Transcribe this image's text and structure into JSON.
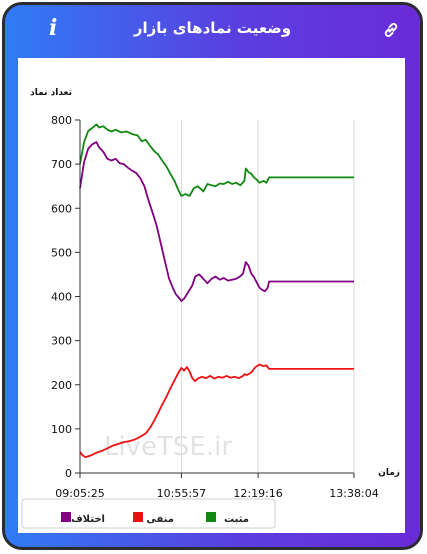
{
  "header": {
    "title": "وضعیت نمادهای بازار",
    "info_icon": "i",
    "link_icon": "link-icon"
  },
  "chart_data": {
    "type": "line",
    "ylabel": "تعداد نماد",
    "xlabel": "زمان",
    "ylim": [
      0,
      800
    ],
    "y_ticks": [
      0,
      100,
      200,
      300,
      400,
      500,
      600,
      700,
      800
    ],
    "x_tick_labels": [
      "09:05:25",
      "10:55:57",
      "12:19:16",
      "13:38:04"
    ],
    "x_tick_positions": [
      0,
      37,
      65,
      100
    ],
    "x_range": [
      0,
      100
    ],
    "watermark": "LiveTSE.ir",
    "legend": "bottom",
    "series": [
      {
        "name": "مثبت",
        "color": "#118811",
        "points": [
          [
            0,
            700
          ],
          [
            1.5,
            750
          ],
          [
            3,
            775
          ],
          [
            4.5,
            782
          ],
          [
            6,
            790
          ],
          [
            7,
            783
          ],
          [
            8.5,
            786
          ],
          [
            10,
            778
          ],
          [
            11.5,
            774
          ],
          [
            13,
            778
          ],
          [
            15,
            772
          ],
          [
            17,
            774
          ],
          [
            19,
            768
          ],
          [
            21,
            765
          ],
          [
            22.5,
            752
          ],
          [
            24,
            755
          ],
          [
            25.5,
            742
          ],
          [
            27,
            730
          ],
          [
            28.5,
            722
          ],
          [
            30,
            708
          ],
          [
            31.5,
            695
          ],
          [
            33,
            678
          ],
          [
            34.5,
            662
          ],
          [
            36,
            640
          ],
          [
            37,
            628
          ],
          [
            38.5,
            632
          ],
          [
            40,
            628
          ],
          [
            41.5,
            645
          ],
          [
            43,
            650
          ],
          [
            44,
            644
          ],
          [
            45,
            638
          ],
          [
            46.5,
            655
          ],
          [
            48,
            652
          ],
          [
            49.5,
            650
          ],
          [
            51,
            656
          ],
          [
            52.5,
            655
          ],
          [
            54,
            660
          ],
          [
            55.5,
            655
          ],
          [
            57,
            658
          ],
          [
            58.5,
            652
          ],
          [
            60,
            662
          ],
          [
            60.5,
            690
          ],
          [
            61.5,
            682
          ],
          [
            62.5,
            678
          ],
          [
            63.5,
            670
          ],
          [
            64.5,
            665
          ],
          [
            65.5,
            658
          ],
          [
            67,
            662
          ],
          [
            68,
            658
          ],
          [
            69,
            670
          ],
          [
            71,
            670
          ],
          [
            80,
            670
          ],
          [
            90,
            670
          ],
          [
            100,
            670
          ]
        ]
      },
      {
        "name": "منفی",
        "color": "#ee1111",
        "points": [
          [
            0,
            48
          ],
          [
            1,
            40
          ],
          [
            2,
            36
          ],
          [
            4,
            40
          ],
          [
            6,
            46
          ],
          [
            8,
            50
          ],
          [
            10,
            56
          ],
          [
            12,
            62
          ],
          [
            14,
            66
          ],
          [
            16,
            70
          ],
          [
            18,
            72
          ],
          [
            20,
            76
          ],
          [
            22,
            82
          ],
          [
            24,
            90
          ],
          [
            25.5,
            102
          ],
          [
            27,
            118
          ],
          [
            28.5,
            136
          ],
          [
            30,
            155
          ],
          [
            31.5,
            172
          ],
          [
            33,
            192
          ],
          [
            34.5,
            210
          ],
          [
            36,
            228
          ],
          [
            37,
            238
          ],
          [
            38,
            232
          ],
          [
            39,
            240
          ],
          [
            40,
            230
          ],
          [
            41,
            215
          ],
          [
            42,
            208
          ],
          [
            43,
            214
          ],
          [
            44.5,
            218
          ],
          [
            46,
            215
          ],
          [
            47.5,
            220
          ],
          [
            49,
            214
          ],
          [
            50.5,
            218
          ],
          [
            52,
            216
          ],
          [
            53.5,
            220
          ],
          [
            55,
            216
          ],
          [
            56.5,
            218
          ],
          [
            58,
            215
          ],
          [
            59.5,
            220
          ],
          [
            60,
            224
          ],
          [
            61,
            222
          ],
          [
            62.5,
            228
          ],
          [
            64,
            240
          ],
          [
            65.5,
            246
          ],
          [
            67,
            242
          ],
          [
            68,
            244
          ],
          [
            69,
            236
          ],
          [
            71,
            236
          ],
          [
            80,
            236
          ],
          [
            90,
            236
          ],
          [
            100,
            236
          ]
        ]
      },
      {
        "name": "اختلاف",
        "color": "#800080",
        "points": [
          [
            0,
            645
          ],
          [
            1.5,
            705
          ],
          [
            3,
            735
          ],
          [
            4.5,
            745
          ],
          [
            6,
            750
          ],
          [
            7,
            738
          ],
          [
            8.5,
            728
          ],
          [
            10,
            712
          ],
          [
            11.5,
            708
          ],
          [
            13,
            712
          ],
          [
            14.5,
            702
          ],
          [
            16,
            700
          ],
          [
            17.5,
            692
          ],
          [
            19,
            685
          ],
          [
            20.5,
            680
          ],
          [
            22,
            668
          ],
          [
            23.5,
            650
          ],
          [
            25,
            618
          ],
          [
            26.5,
            590
          ],
          [
            28,
            560
          ],
          [
            29.5,
            520
          ],
          [
            31,
            480
          ],
          [
            32.5,
            440
          ],
          [
            34,
            418
          ],
          [
            35,
            405
          ],
          [
            36,
            398
          ],
          [
            37,
            390
          ],
          [
            38,
            395
          ],
          [
            39.5,
            410
          ],
          [
            41,
            425
          ],
          [
            42,
            445
          ],
          [
            43.5,
            450
          ],
          [
            45,
            440
          ],
          [
            46.5,
            430
          ],
          [
            48,
            440
          ],
          [
            49.5,
            445
          ],
          [
            51,
            438
          ],
          [
            52.5,
            442
          ],
          [
            54,
            436
          ],
          [
            55.5,
            438
          ],
          [
            57,
            440
          ],
          [
            58.5,
            446
          ],
          [
            59.5,
            452
          ],
          [
            60.5,
            478
          ],
          [
            61.5,
            470
          ],
          [
            62.5,
            452
          ],
          [
            63.5,
            444
          ],
          [
            64.5,
            432
          ],
          [
            65.5,
            420
          ],
          [
            66.5,
            415
          ],
          [
            67.5,
            412
          ],
          [
            68.5,
            420
          ],
          [
            69,
            434
          ],
          [
            71,
            434
          ],
          [
            80,
            434
          ],
          [
            90,
            434
          ],
          [
            100,
            434
          ]
        ]
      }
    ]
  }
}
